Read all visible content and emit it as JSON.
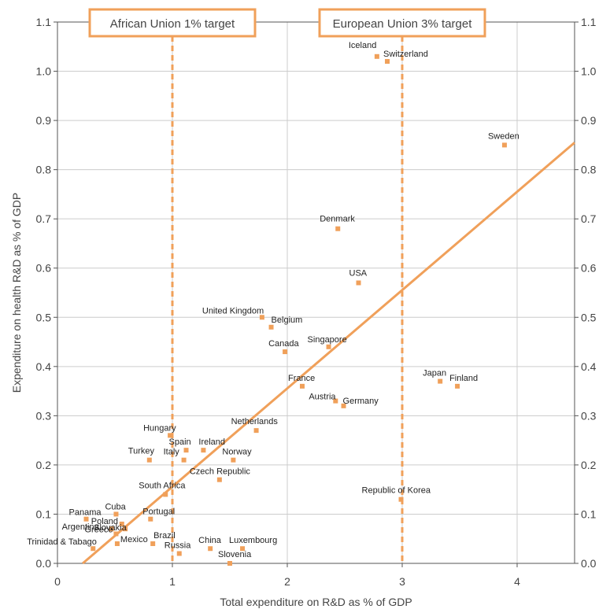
{
  "chart_data": {
    "type": "scatter",
    "xlabel": "Total expenditure on R&D as % of GDP",
    "ylabel": "Expenditure on health R&D as % of GDP",
    "xlim": [
      0,
      4.5
    ],
    "ylim": [
      0,
      1.1
    ],
    "x_ticks": [
      "0",
      "1",
      "2",
      "3",
      "4"
    ],
    "y_ticks": [
      "0.0",
      "0.1",
      "0.2",
      "0.3",
      "0.4",
      "0.5",
      "0.6",
      "0.7",
      "0.8",
      "0.9",
      "1.0",
      "1.1"
    ],
    "grid": true,
    "point_color": "#f0a05a",
    "line_color": "#f0a05a",
    "points": [
      {
        "label": "Iceland",
        "x": 2.78,
        "y": 1.03
      },
      {
        "label": "Switzerland",
        "x": 2.87,
        "y": 1.02
      },
      {
        "label": "Sweden",
        "x": 3.89,
        "y": 0.85
      },
      {
        "label": "Denmark",
        "x": 2.44,
        "y": 0.68
      },
      {
        "label": "USA",
        "x": 2.62,
        "y": 0.57
      },
      {
        "label": "United Kingdom",
        "x": 1.78,
        "y": 0.5
      },
      {
        "label": "Belgium",
        "x": 1.86,
        "y": 0.48
      },
      {
        "label": "Singapore",
        "x": 2.36,
        "y": 0.44
      },
      {
        "label": "Canada",
        "x": 1.98,
        "y": 0.43
      },
      {
        "label": "Japan",
        "x": 3.33,
        "y": 0.37
      },
      {
        "label": "Finland",
        "x": 3.48,
        "y": 0.36
      },
      {
        "label": "France",
        "x": 2.13,
        "y": 0.36
      },
      {
        "label": "Austria",
        "x": 2.42,
        "y": 0.33
      },
      {
        "label": "Germany",
        "x": 2.49,
        "y": 0.32
      },
      {
        "label": "Netherlands",
        "x": 1.73,
        "y": 0.27
      },
      {
        "label": "Hungary",
        "x": 0.98,
        "y": 0.26
      },
      {
        "label": "Spain",
        "x": 1.12,
        "y": 0.23
      },
      {
        "label": "Ireland",
        "x": 1.27,
        "y": 0.23
      },
      {
        "label": "Turkey",
        "x": 0.8,
        "y": 0.21
      },
      {
        "label": "Italy",
        "x": 1.1,
        "y": 0.21
      },
      {
        "label": "Norway",
        "x": 1.53,
        "y": 0.21
      },
      {
        "label": "Czech Republic",
        "x": 1.41,
        "y": 0.17
      },
      {
        "label": "South Africa",
        "x": 0.94,
        "y": 0.14
      },
      {
        "label": "Republic of Korea",
        "x": 2.99,
        "y": 0.13
      },
      {
        "label": "Cuba",
        "x": 0.51,
        "y": 0.1
      },
      {
        "label": "Panama",
        "x": 0.25,
        "y": 0.09
      },
      {
        "label": "Portugal",
        "x": 0.81,
        "y": 0.09
      },
      {
        "label": "Poland",
        "x": 0.56,
        "y": 0.08
      },
      {
        "label": "Argentina",
        "x": 0.47,
        "y": 0.07
      },
      {
        "label": "Slovakia",
        "x": 0.59,
        "y": 0.07
      },
      {
        "label": "Greece",
        "x": 0.51,
        "y": 0.06
      },
      {
        "label": "Mexico",
        "x": 0.52,
        "y": 0.04
      },
      {
        "label": "Brazil",
        "x": 0.83,
        "y": 0.04
      },
      {
        "label": "Luxembourg",
        "x": 1.61,
        "y": 0.03
      },
      {
        "label": "China",
        "x": 1.33,
        "y": 0.03
      },
      {
        "label": "Trinidad & Tabago",
        "x": 0.31,
        "y": 0.03
      },
      {
        "label": "Russia",
        "x": 1.06,
        "y": 0.02
      },
      {
        "label": "Slovenia",
        "x": 1.5,
        "y": 0.0
      }
    ],
    "trend_line": {
      "x": [
        0.22,
        4.5
      ],
      "y": [
        0.0,
        0.855
      ]
    },
    "target_lines": [
      {
        "label": "African Union 1% target",
        "x": 1
      },
      {
        "label": "European Union 3% target",
        "x": 3
      }
    ]
  }
}
